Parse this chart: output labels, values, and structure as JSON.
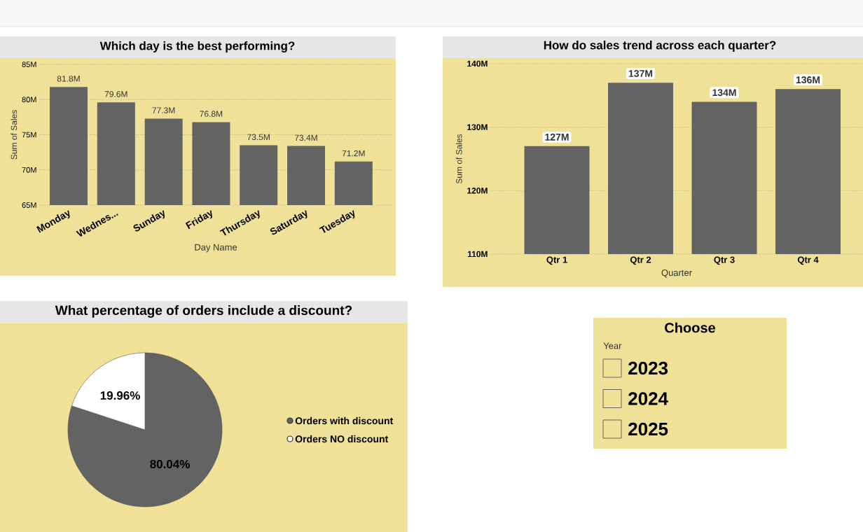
{
  "chart_data": [
    {
      "type": "bar",
      "title": "Which day is the best performing?",
      "xlabel": "Day Name",
      "ylabel": "Sum of Sales",
      "categories": [
        "Monday",
        "Wednes...",
        "Sunday",
        "Friday",
        "Thursday",
        "Saturday",
        "Tuesday"
      ],
      "values": [
        81.8,
        79.6,
        77.3,
        76.8,
        73.5,
        73.4,
        71.2
      ],
      "value_labels": [
        "81.8M",
        "79.6M",
        "77.3M",
        "76.8M",
        "73.5M",
        "73.4M",
        "71.2M"
      ],
      "color": "#636363",
      "ylim": [
        65,
        85
      ],
      "yticks": [
        {
          "value": 65,
          "label": "65M"
        },
        {
          "value": 70,
          "label": "70M"
        },
        {
          "value": 75,
          "label": "75M"
        },
        {
          "value": 80,
          "label": "80M"
        },
        {
          "value": 85,
          "label": "85M"
        }
      ],
      "grid": "y"
    },
    {
      "type": "bar",
      "title": "How do sales trend across each quarter?",
      "xlabel": "Quarter",
      "ylabel": "Sum of Sales",
      "categories": [
        "Qtr 1",
        "Qtr 2",
        "Qtr 3",
        "Qtr 4"
      ],
      "values": [
        127,
        137,
        134,
        136
      ],
      "value_labels": [
        "127M",
        "137M",
        "134M",
        "136M"
      ],
      "color": "#636363",
      "ylim": [
        110,
        140
      ],
      "yticks": [
        {
          "value": 110,
          "label": "110M"
        },
        {
          "value": 120,
          "label": "120M"
        },
        {
          "value": 130,
          "label": "130M"
        },
        {
          "value": 140,
          "label": "140M"
        }
      ],
      "grid": "y"
    },
    {
      "type": "pie",
      "title": "What percentage of orders include a discount?",
      "categories": [
        "Orders with discount",
        "Orders NO discount"
      ],
      "values": [
        80.04,
        19.96
      ],
      "value_labels": [
        "80.04%",
        "19.96%"
      ],
      "colors": [
        "#636363",
        "#ffffff"
      ],
      "legend": "right"
    },
    {
      "type": "other",
      "title": "Choose",
      "subtitle": "Year",
      "categories": [
        "2023",
        "2024",
        "2025"
      ]
    }
  ]
}
